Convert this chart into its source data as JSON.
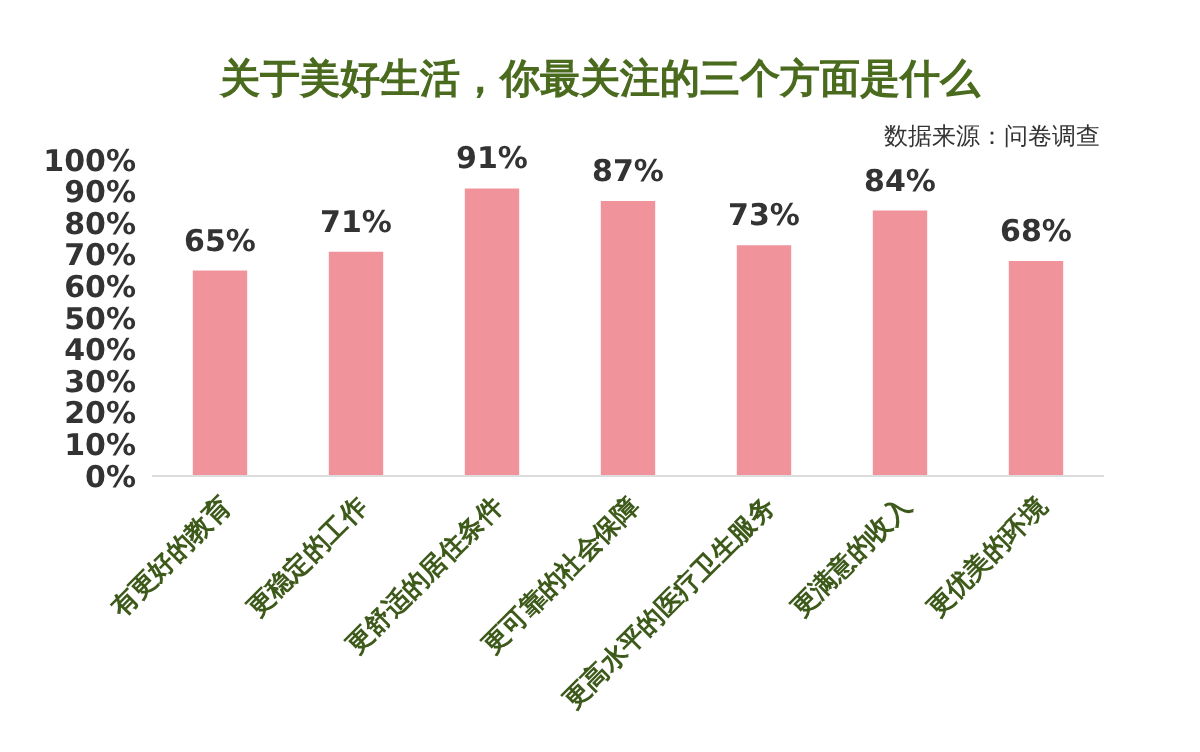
{
  "chart_data": {
    "type": "bar",
    "title": "关于美好生活，你最关注的三个方面是什么",
    "annotations": [
      "数据来源：问卷调查"
    ],
    "categories": [
      "有更好的教育",
      "更稳定的工作",
      "更舒适的居住条件",
      "更可靠的社会保障",
      "更高水平的医疗卫生服务",
      "更满意的收入",
      "更优美的环境"
    ],
    "values": [
      65,
      71,
      91,
      87,
      73,
      84,
      68
    ],
    "value_labels": [
      "65%",
      "71%",
      "91%",
      "87%",
      "73%",
      "84%",
      "68%"
    ],
    "color": "#f0939b",
    "ylim": [
      0,
      100
    ],
    "yticks": [
      {
        "value": 0,
        "label": "0%"
      },
      {
        "value": 10,
        "label": "10%"
      },
      {
        "value": 20,
        "label": "20%"
      },
      {
        "value": 30,
        "label": "30%"
      },
      {
        "value": 40,
        "label": "40%"
      },
      {
        "value": 50,
        "label": "50%"
      },
      {
        "value": 60,
        "label": "60%"
      },
      {
        "value": 70,
        "label": "70%"
      },
      {
        "value": 80,
        "label": "80%"
      },
      {
        "value": 90,
        "label": "90%"
      },
      {
        "value": 100,
        "label": "100%"
      }
    ],
    "grid": false,
    "legend": false
  }
}
